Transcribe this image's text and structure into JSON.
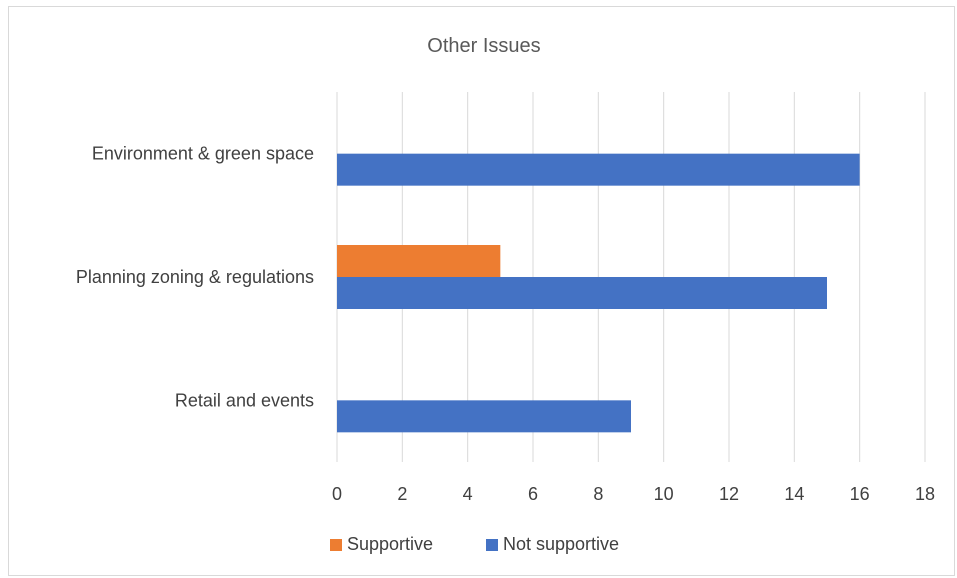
{
  "chart_data": {
    "type": "bar",
    "orientation": "horizontal",
    "title": "Other Issues",
    "categories": [
      "Environment & green space",
      "Planning zoning & regulations",
      "Retail and events"
    ],
    "series": [
      {
        "name": "Supportive",
        "color": "#ed7d31",
        "values": [
          0,
          5,
          0
        ]
      },
      {
        "name": "Not supportive",
        "color": "#4472c4",
        "values": [
          16,
          15,
          9
        ]
      }
    ],
    "x_ticks": [
      "0",
      "2",
      "4",
      "6",
      "8",
      "10",
      "12",
      "14",
      "16",
      "18"
    ],
    "xlim": [
      0,
      18
    ],
    "grid": "vertical",
    "legend_position": "bottom"
  }
}
